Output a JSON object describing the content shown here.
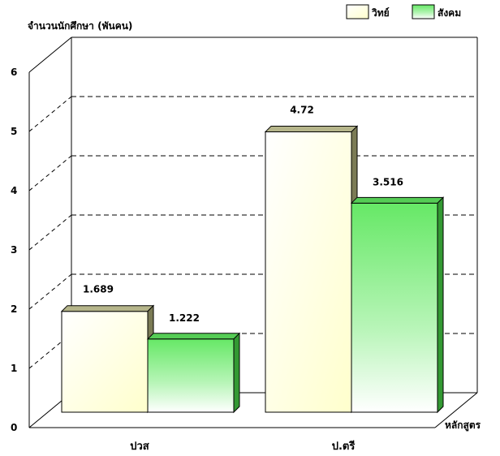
{
  "chart_data": {
    "type": "bar",
    "ylabel": "จำนวนนักศึกษา (พันคน)",
    "xlabel": "หลักสูตร",
    "categories": [
      "ปวส",
      "ป.ตรี"
    ],
    "series": [
      {
        "name": "วิทย์",
        "values": [
          1.689,
          4.72
        ],
        "color": "#ffffdd"
      },
      {
        "name": "สังคม",
        "values": [
          1.222,
          3.516
        ],
        "color": "#88ee88"
      }
    ],
    "ylim": [
      0,
      6
    ],
    "yticks": [
      "0",
      "1",
      "2",
      "3",
      "4",
      "5",
      "6"
    ],
    "value_labels": [
      [
        "1.689",
        "4.72"
      ],
      [
        "1.222",
        "3.516"
      ]
    ],
    "grid": true,
    "legend_position": "top-right"
  }
}
